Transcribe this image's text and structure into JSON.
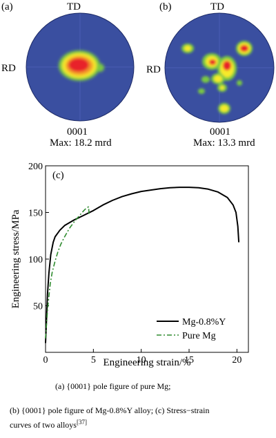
{
  "pole_a": {
    "panel": "(a)",
    "td": "TD",
    "rd": "RD",
    "plane": "0001",
    "max": "Max: 18.2 mrd",
    "colors": {
      "low": "#3a4fa0",
      "mid": "#7ac943",
      "high": "#f7ea2a",
      "peak": "#e8232a"
    }
  },
  "pole_b": {
    "panel": "(b)",
    "td": "TD",
    "rd": "RD",
    "plane": "0001",
    "max": "Max: 13.3 mrd"
  },
  "chart_data": {
    "type": "line",
    "panel": "(c)",
    "xlabel": "Engineering strain/%",
    "ylabel": "Engineering stress/MPa",
    "xlim": [
      0,
      21.2
    ],
    "ylim": [
      0,
      200
    ],
    "xticks": [
      0,
      5,
      10,
      15,
      20
    ],
    "yticks": [
      50,
      100,
      150,
      200
    ],
    "legend_position": "bottom-right",
    "series": [
      {
        "name": "Mg-0.8%Y",
        "color": "#000000",
        "dash": "solid",
        "points": [
          [
            0,
            10
          ],
          [
            0.1,
            35
          ],
          [
            0.2,
            62
          ],
          [
            0.35,
            85
          ],
          [
            0.55,
            105
          ],
          [
            0.8,
            118
          ],
          [
            1.0,
            124
          ],
          [
            1.5,
            131
          ],
          [
            2.0,
            136
          ],
          [
            3.0,
            142
          ],
          [
            4.0,
            147
          ],
          [
            5.0,
            152
          ],
          [
            6.0,
            158
          ],
          [
            7.0,
            163
          ],
          [
            8.0,
            167
          ],
          [
            9.0,
            170
          ],
          [
            10.0,
            172.5
          ],
          [
            11.0,
            174
          ],
          [
            12.0,
            175.5
          ],
          [
            13.0,
            176.5
          ],
          [
            14.0,
            177
          ],
          [
            15.0,
            177
          ],
          [
            16.0,
            176.5
          ],
          [
            17.0,
            175
          ],
          [
            18.0,
            172
          ],
          [
            19.0,
            166
          ],
          [
            19.6,
            158
          ],
          [
            19.9,
            150
          ],
          [
            20.1,
            135
          ],
          [
            20.2,
            118
          ]
        ]
      },
      {
        "name": "Pure Mg",
        "color": "#2e8b2e",
        "dash": "dashdot",
        "points": [
          [
            0,
            15
          ],
          [
            0.1,
            30
          ],
          [
            0.2,
            45
          ],
          [
            0.35,
            60
          ],
          [
            0.5,
            74
          ],
          [
            0.7,
            86
          ],
          [
            1.0,
            98
          ],
          [
            1.3,
            108
          ],
          [
            1.6,
            116
          ],
          [
            2.0,
            124
          ],
          [
            2.5,
            133
          ],
          [
            3.0,
            140
          ],
          [
            3.5,
            146
          ],
          [
            4.0,
            152
          ],
          [
            4.3,
            155
          ],
          [
            4.5,
            156
          ],
          [
            4.55,
            148
          ]
        ]
      }
    ]
  },
  "captions": {
    "line1": "(a)  {0001} pole figure of pure Mg;",
    "line2a": "(b)  {0001} pole figure of Mg-0.8%Y alloy; (c)  Stress−strain",
    "line2b": "curves of two alloys",
    "ref": "[37]"
  }
}
